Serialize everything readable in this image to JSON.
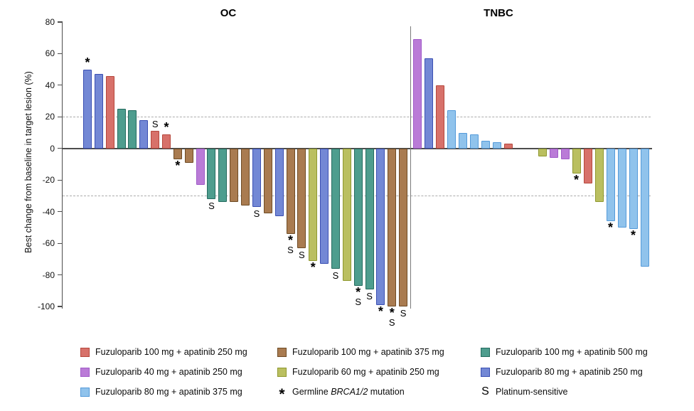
{
  "chart_data": {
    "type": "bar",
    "variant": "waterfall",
    "ylabel": "Best change from baseline in target lesion (%)",
    "ylim": [
      -100,
      80
    ],
    "yticks": [
      80,
      60,
      40,
      20,
      0,
      -20,
      -40,
      -60,
      -80,
      -100
    ],
    "dashed_gridlines": [
      20,
      -30
    ],
    "grid": "off",
    "legend_position": "bottom",
    "groups": {
      "fz100_ap250": {
        "label": "Fuzuloparib 100 mg + apatinib 250 mg",
        "fill": "#d7716a",
        "stroke": "#b5473c"
      },
      "fz40_ap250": {
        "label": "Fuzuloparib 40 mg + apatinib 250 mg",
        "fill": "#ba7bd7",
        "stroke": "#a05bc8"
      },
      "fz80_ap375": {
        "label": "Fuzuloparib 80 mg + apatinib 375 mg",
        "fill": "#90c3ec",
        "stroke": "#549ad9"
      },
      "fz100_ap375": {
        "label": "Fuzuloparib 100 mg + apatinib 375 mg",
        "fill": "#a97b50",
        "stroke": "#6e4b25"
      },
      "fz60_ap250": {
        "label": "Fuzuloparib 60 mg + apatinib 250 mg",
        "fill": "#babf60",
        "stroke": "#8f982f"
      },
      "fz100_ap500": {
        "label": "Fuzuloparib 100 mg + apatinib 500 mg",
        "fill": "#4e9d8e",
        "stroke": "#256b5f"
      },
      "fz80_ap250": {
        "label": "Fuzuloparib 80 mg + apatinib 250 mg",
        "fill": "#7388d5",
        "stroke": "#3a4fb2"
      }
    },
    "markers": {
      "star": {
        "symbol": "*",
        "label_pre": "Germline ",
        "label_italic": "BRCA1/2",
        "label_post": " mutation"
      },
      "s": {
        "symbol": "S",
        "label_pre": "Platinum-sensitive",
        "label_italic": "",
        "label_post": ""
      }
    },
    "panels": [
      {
        "title": "OC",
        "bars": [
          {
            "value": 50,
            "group": "fz80_ap250",
            "flags": [
              "*"
            ]
          },
          {
            "value": 47,
            "group": "fz80_ap250",
            "flags": []
          },
          {
            "value": 46,
            "group": "fz100_ap250",
            "flags": []
          },
          {
            "value": 25,
            "group": "fz100_ap500",
            "flags": []
          },
          {
            "value": 24,
            "group": "fz100_ap500",
            "flags": []
          },
          {
            "value": 18,
            "group": "fz80_ap250",
            "flags": []
          },
          {
            "value": 11,
            "group": "fz100_ap250",
            "flags": [
              "S"
            ]
          },
          {
            "value": 9,
            "group": "fz100_ap250",
            "flags": [
              "*"
            ]
          },
          {
            "value": -7,
            "group": "fz100_ap375",
            "flags": [
              "*"
            ]
          },
          {
            "value": -9,
            "group": "fz100_ap375",
            "flags": []
          },
          {
            "value": -23,
            "group": "fz40_ap250",
            "flags": []
          },
          {
            "value": -32,
            "group": "fz100_ap500",
            "flags": [
              "S"
            ]
          },
          {
            "value": -34,
            "group": "fz100_ap500",
            "flags": []
          },
          {
            "value": -34,
            "group": "fz100_ap375",
            "flags": []
          },
          {
            "value": -36,
            "group": "fz100_ap375",
            "flags": []
          },
          {
            "value": -37,
            "group": "fz80_ap250",
            "flags": [
              "S"
            ]
          },
          {
            "value": -41,
            "group": "fz100_ap375",
            "flags": []
          },
          {
            "value": -43,
            "group": "fz80_ap250",
            "flags": []
          },
          {
            "value": -54,
            "group": "fz100_ap375",
            "flags": [
              "*",
              "S"
            ]
          },
          {
            "value": -63,
            "group": "fz100_ap375",
            "flags": [
              "S"
            ]
          },
          {
            "value": -71,
            "group": "fz60_ap250",
            "flags": [
              "*"
            ]
          },
          {
            "value": -73,
            "group": "fz80_ap250",
            "flags": []
          },
          {
            "value": -76,
            "group": "fz100_ap500",
            "flags": [
              "S"
            ]
          },
          {
            "value": -84,
            "group": "fz60_ap250",
            "flags": []
          },
          {
            "value": -87,
            "group": "fz100_ap500",
            "flags": [
              "*",
              "S"
            ]
          },
          {
            "value": -89,
            "group": "fz100_ap500",
            "flags": [
              "S"
            ]
          },
          {
            "value": -99,
            "group": "fz80_ap250",
            "flags": [
              "*"
            ]
          },
          {
            "value": -100,
            "group": "fz100_ap375",
            "flags": [
              "*",
              "S"
            ]
          },
          {
            "value": -100,
            "group": "fz100_ap375",
            "flags": [
              "S"
            ]
          }
        ]
      },
      {
        "title": "TNBC",
        "gap_after_index": 8,
        "gap_slots": 2,
        "bars": [
          {
            "value": 69,
            "group": "fz40_ap250",
            "flags": []
          },
          {
            "value": 57,
            "group": "fz80_ap250",
            "flags": []
          },
          {
            "value": 40,
            "group": "fz100_ap250",
            "flags": []
          },
          {
            "value": 24,
            "group": "fz80_ap375",
            "flags": []
          },
          {
            "value": 10,
            "group": "fz80_ap375",
            "flags": []
          },
          {
            "value": 9,
            "group": "fz80_ap375",
            "flags": []
          },
          {
            "value": 5,
            "group": "fz80_ap375",
            "flags": []
          },
          {
            "value": 4,
            "group": "fz80_ap375",
            "flags": []
          },
          {
            "value": 3,
            "group": "fz100_ap250",
            "flags": []
          },
          {
            "value": -5,
            "group": "fz60_ap250",
            "flags": []
          },
          {
            "value": -6,
            "group": "fz40_ap250",
            "flags": []
          },
          {
            "value": -7,
            "group": "fz40_ap250",
            "flags": []
          },
          {
            "value": -16,
            "group": "fz60_ap250",
            "flags": [
              "*"
            ]
          },
          {
            "value": -22,
            "group": "fz100_ap250",
            "flags": []
          },
          {
            "value": -34,
            "group": "fz60_ap250",
            "flags": []
          },
          {
            "value": -46,
            "group": "fz80_ap375",
            "flags": [
              "*"
            ]
          },
          {
            "value": -50,
            "group": "fz80_ap375",
            "flags": []
          },
          {
            "value": -51,
            "group": "fz80_ap375",
            "flags": [
              "*"
            ]
          },
          {
            "value": -75,
            "group": "fz80_ap375",
            "flags": []
          }
        ]
      }
    ],
    "legend_columns": [
      [
        {
          "type": "group",
          "id": "fz100_ap250"
        },
        {
          "type": "group",
          "id": "fz40_ap250"
        },
        {
          "type": "group",
          "id": "fz80_ap375"
        }
      ],
      [
        {
          "type": "group",
          "id": "fz100_ap375"
        },
        {
          "type": "group",
          "id": "fz60_ap250"
        },
        {
          "type": "marker",
          "id": "star"
        }
      ],
      [
        {
          "type": "group",
          "id": "fz100_ap500"
        },
        {
          "type": "group",
          "id": "fz80_ap250"
        },
        {
          "type": "marker",
          "id": "s"
        }
      ]
    ]
  }
}
